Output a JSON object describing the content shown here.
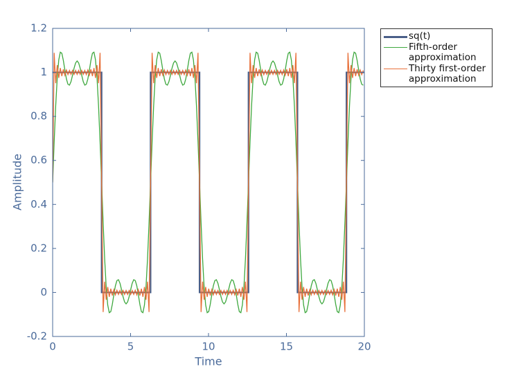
{
  "chart_data": {
    "type": "line",
    "xlabel": "Time",
    "ylabel": "Amplitude",
    "xlim": [
      0,
      20
    ],
    "ylim": [
      -0.2,
      1.2
    ],
    "xticks": [
      0,
      5,
      10,
      15,
      20
    ],
    "yticks": [
      -0.2,
      0,
      0.2,
      0.4,
      0.6,
      0.8,
      1,
      1.2
    ],
    "x": [
      0,
      0.098,
      0.196,
      0.295,
      0.393,
      0.491,
      0.589,
      0.687,
      0.785,
      0.884,
      0.982,
      1.08,
      1.178,
      1.276,
      1.374,
      1.473,
      1.571,
      1.669,
      1.767,
      1.865,
      1.963,
      2.062,
      2.16,
      2.258,
      2.356,
      2.454,
      2.553,
      2.651,
      2.749,
      2.847,
      2.945,
      3.043,
      3.142,
      3.24,
      3.338,
      3.436,
      3.534,
      3.632,
      3.731,
      3.829,
      3.927,
      4.025,
      4.123,
      4.222,
      4.32,
      4.418,
      4.516,
      4.614,
      4.712,
      4.811,
      4.909,
      5.007,
      5.105,
      5.203,
      5.301,
      5.4,
      5.498,
      5.596,
      5.694,
      5.792,
      5.89,
      5.989,
      6.087,
      6.185,
      6.283,
      6.381,
      6.48,
      6.578,
      6.676,
      6.774,
      6.872,
      6.97,
      7.069,
      7.167,
      7.265,
      7.363,
      7.461,
      7.56,
      7.658,
      7.756,
      7.854,
      7.952,
      8.05,
      8.149,
      8.247,
      8.345,
      8.443,
      8.541,
      8.639,
      8.738,
      8.836,
      8.934,
      9.032,
      9.13,
      9.228,
      9.327,
      9.425,
      9.523,
      9.621,
      9.719,
      9.817,
      9.916,
      10.014,
      10.112,
      10.21,
      10.308,
      10.407,
      10.505,
      10.603,
      10.701,
      10.799,
      10.897,
      10.996,
      11.094,
      11.192,
      11.29,
      11.388,
      11.487,
      11.585,
      11.683,
      11.781,
      11.879,
      11.977,
      12.076,
      12.174,
      12.272,
      12.37,
      12.468,
      12.566,
      12.665,
      12.763,
      12.861,
      12.959,
      13.057,
      13.155,
      13.254,
      13.352,
      13.45,
      13.548,
      13.646,
      13.744,
      13.843,
      13.941,
      14.039,
      14.137,
      14.235,
      14.334,
      14.432,
      14.53,
      14.628,
      14.726,
      14.824,
      14.923,
      15.021,
      15.119,
      15.217,
      15.315,
      15.413,
      15.512,
      15.61,
      15.708,
      15.806,
      15.904,
      16.002,
      16.101,
      16.199,
      16.297,
      16.395,
      16.493,
      16.592,
      16.69,
      16.788,
      16.886,
      16.984,
      17.082,
      17.181,
      17.279,
      17.377,
      17.475,
      17.573,
      17.671,
      17.77,
      17.868,
      17.966,
      18.064,
      18.162,
      18.261,
      18.359,
      18.457,
      18.555,
      18.653,
      18.751,
      18.85,
      18.948,
      19.046,
      19.144,
      19.242,
      19.341,
      19.439,
      19.537,
      19.635,
      19.733,
      19.831,
      19.93
    ],
    "series": [
      {
        "name": "sq(t)",
        "color": "#4a5f88",
        "x": [
          0,
          3.1416,
          3.1416,
          6.2832,
          6.2832,
          9.4248,
          9.4248,
          12.5664,
          12.5664,
          15.708,
          15.708,
          18.8496,
          18.8496,
          20
        ],
        "values": [
          1,
          1,
          0,
          0,
          1,
          1,
          0,
          0,
          1,
          1,
          0,
          0,
          1,
          1
        ]
      },
      {
        "name": "Fifth-order\napproximation",
        "color": "#3ea83e",
        "values": [
          0.5,
          0.684,
          0.848,
          0.976,
          1.057,
          1.092,
          1.087,
          1.054,
          1.01,
          0.97,
          0.946,
          0.942,
          0.958,
          0.987,
          1.019,
          1.043,
          1.052,
          1.043,
          1.019,
          0.987,
          0.958,
          0.942,
          0.946,
          0.97,
          1.01,
          1.054,
          1.087,
          1.092,
          1.057,
          0.976,
          0.848,
          0.684,
          0.5,
          0.316,
          0.152,
          0.024,
          -0.057,
          -0.092,
          -0.087,
          -0.054,
          -0.01,
          0.03,
          0.054,
          0.058,
          0.042,
          0.013,
          -0.019,
          -0.043,
          -0.052,
          -0.043,
          -0.019,
          0.013,
          0.042,
          0.058,
          0.054,
          0.03,
          -0.01,
          -0.054,
          -0.087,
          -0.092,
          -0.057,
          0.024,
          0.152,
          0.316,
          0.5,
          0.684,
          0.848,
          0.976,
          1.057,
          1.092,
          1.087,
          1.054,
          1.01,
          0.97,
          0.946,
          0.942,
          0.958,
          0.987,
          1.019,
          1.043,
          1.052,
          1.043,
          1.019,
          0.987,
          0.958,
          0.942,
          0.946,
          0.97,
          1.01,
          1.054,
          1.087,
          1.092,
          1.057,
          0.976,
          0.848,
          0.684,
          0.5,
          0.316,
          0.152,
          0.024,
          -0.057,
          -0.092,
          -0.087,
          -0.054,
          -0.01,
          0.03,
          0.054,
          0.058,
          0.042,
          0.013,
          -0.019,
          -0.043,
          -0.052,
          -0.043,
          -0.019,
          0.013,
          0.042,
          0.058,
          0.054,
          0.03,
          -0.01,
          -0.054,
          -0.087,
          -0.092,
          -0.057,
          0.024,
          0.152,
          0.316,
          0.5,
          0.684,
          0.848,
          0.976,
          1.057,
          1.092,
          1.087,
          1.054,
          1.01,
          0.97,
          0.946,
          0.942,
          0.958,
          0.987,
          1.019,
          1.043,
          1.052,
          1.043,
          1.019,
          0.987,
          0.958,
          0.942,
          0.946,
          0.97,
          1.01,
          1.054,
          1.087,
          1.092,
          1.057,
          0.976,
          0.848,
          0.684,
          0.5,
          0.316,
          0.152,
          0.024,
          -0.057,
          -0.092,
          -0.087,
          -0.054,
          -0.01,
          0.03,
          0.054,
          0.058,
          0.042,
          0.013,
          -0.019,
          -0.043,
          -0.052,
          -0.043,
          -0.019,
          0.013,
          0.042,
          0.058,
          0.054,
          0.03,
          -0.01,
          -0.054,
          -0.087,
          -0.092,
          -0.057,
          0.024,
          0.152,
          0.316,
          0.5,
          0.684,
          0.848,
          0.976,
          1.057,
          1.092,
          1.087,
          1.054,
          1.01,
          0.97,
          0.946,
          0.942
        ]
      },
      {
        "name": "Thirty first-order\napproximation",
        "color": "#e8703a",
        "values": [
          0.5,
          1.089,
          0.951,
          1.033,
          0.975,
          1.02,
          0.983,
          1.014,
          0.987,
          1.011,
          0.99,
          1.009,
          0.991,
          1.009,
          0.991,
          1.009,
          0.991,
          1.009,
          0.991,
          1.009,
          0.991,
          1.009,
          0.99,
          1.011,
          0.987,
          1.014,
          0.983,
          1.02,
          0.975,
          1.033,
          0.951,
          1.089,
          0.5,
          -0.089,
          0.049,
          -0.033,
          0.025,
          -0.02,
          0.017,
          -0.014,
          0.013,
          -0.011,
          0.01,
          -0.009,
          0.009,
          -0.009,
          0.009,
          -0.009,
          0.009,
          -0.009,
          0.009,
          -0.009,
          0.009,
          -0.009,
          0.01,
          -0.011,
          0.013,
          -0.014,
          0.017,
          -0.02,
          0.025,
          -0.033,
          0.049,
          -0.089,
          0.5,
          1.089,
          0.951,
          1.033,
          0.975,
          1.02,
          0.983,
          1.014,
          0.987,
          1.011,
          0.99,
          1.009,
          0.991,
          1.009,
          0.991,
          1.009,
          0.991,
          1.009,
          0.991,
          1.009,
          0.991,
          1.009,
          0.99,
          1.011,
          0.987,
          1.014,
          0.983,
          1.02,
          0.975,
          1.033,
          0.951,
          1.089,
          0.5,
          -0.089,
          0.049,
          -0.033,
          0.025,
          -0.02,
          0.017,
          -0.014,
          0.013,
          -0.011,
          0.01,
          -0.009,
          0.009,
          -0.009,
          0.009,
          -0.009,
          0.009,
          -0.009,
          0.009,
          -0.009,
          0.009,
          -0.009,
          0.01,
          -0.011,
          0.013,
          -0.014,
          0.017,
          -0.02,
          0.025,
          -0.033,
          0.049,
          -0.089,
          0.5,
          1.089,
          0.951,
          1.033,
          0.975,
          1.02,
          0.983,
          1.014,
          0.987,
          1.011,
          0.99,
          1.009,
          0.991,
          1.009,
          0.991,
          1.009,
          0.991,
          1.009,
          0.991,
          1.009,
          0.991,
          1.009,
          0.99,
          1.011,
          0.987,
          1.014,
          0.983,
          1.02,
          0.975,
          1.033,
          0.951,
          1.089,
          0.5,
          -0.089,
          0.049,
          -0.033,
          0.025,
          -0.02,
          0.017,
          -0.014,
          0.013,
          -0.011,
          0.01,
          -0.009,
          0.009,
          -0.009,
          0.009,
          -0.009,
          0.009,
          -0.009,
          0.009,
          -0.009,
          0.009,
          -0.009,
          0.01,
          -0.011,
          0.013,
          -0.014,
          0.017,
          -0.02,
          0.025,
          -0.033,
          0.049,
          -0.089,
          0.5,
          1.089,
          0.951,
          1.033,
          0.975,
          1.02,
          0.983,
          1.014,
          0.987,
          1.011,
          0.99,
          1.009
        ]
      }
    ],
    "legend": "outside-top-right"
  }
}
